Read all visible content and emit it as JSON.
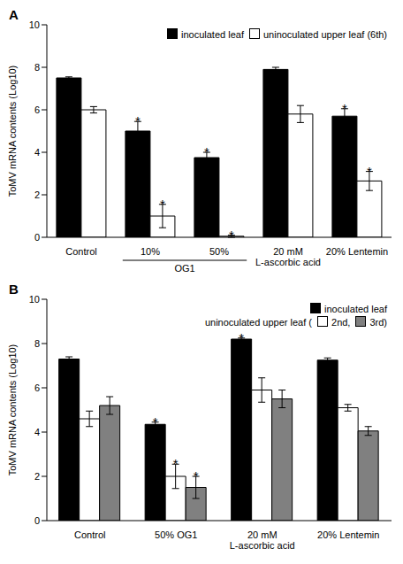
{
  "chart_data": [
    {
      "type": "bar",
      "panel": "A",
      "categories": [
        "Control",
        "10%",
        "50%",
        "20 mM L-ascorbic acid",
        "20% Lentemin"
      ],
      "groups": [
        {
          "label": "OG1",
          "categories": [
            "10%",
            "50%"
          ]
        }
      ],
      "y_label": "ToMV mRNA contents (Log10)",
      "ylim": [
        0,
        10
      ],
      "yticks": [
        0,
        2,
        4,
        6,
        8,
        10
      ],
      "grid": false,
      "legend": "upper right",
      "significance_label": "*",
      "series": [
        {
          "name": "inoculated leaf",
          "color": "#000000",
          "values": [
            7.5,
            5.0,
            3.75,
            7.9,
            5.7
          ],
          "errors": [
            0.05,
            0.45,
            0.25,
            0.1,
            0.35
          ],
          "significant": [
            false,
            true,
            true,
            false,
            true
          ]
        },
        {
          "name": "uninoculated upper leaf (6th)",
          "color": "#ffffff",
          "values": [
            6.0,
            1.0,
            0.05,
            5.8,
            2.65
          ],
          "errors": [
            0.15,
            0.55,
            0.05,
            0.4,
            0.45
          ],
          "significant": [
            false,
            true,
            true,
            false,
            true
          ]
        }
      ]
    },
    {
      "type": "bar",
      "panel": "B",
      "categories": [
        "Control",
        "50% OG1",
        "20 mM L-ascorbic acid",
        "20% Lentemin"
      ],
      "y_label": "ToMV mRNA contents (Log10)",
      "ylim": [
        0,
        10
      ],
      "yticks": [
        0,
        2,
        4,
        6,
        8,
        10
      ],
      "grid": false,
      "legend": "upper right",
      "legend_prefix": "uninoculated upper leaf (",
      "significance_label": "*",
      "series": [
        {
          "name": "inoculated leaf",
          "color": "#000000",
          "values": [
            7.3,
            4.35,
            8.2,
            7.25
          ],
          "errors": [
            0.1,
            0.1,
            0.05,
            0.1
          ],
          "significant": [
            false,
            true,
            true,
            false
          ]
        },
        {
          "name": "2nd,",
          "color": "#ffffff",
          "values": [
            4.6,
            2.0,
            5.9,
            5.1
          ],
          "errors": [
            0.35,
            0.55,
            0.55,
            0.15
          ],
          "significant": [
            false,
            true,
            false,
            false
          ]
        },
        {
          "name": "3rd)",
          "color": "#808080",
          "values": [
            5.2,
            1.5,
            5.5,
            4.05
          ],
          "errors": [
            0.4,
            0.5,
            0.4,
            0.2
          ],
          "significant": [
            false,
            true,
            false,
            false
          ]
        }
      ]
    }
  ]
}
